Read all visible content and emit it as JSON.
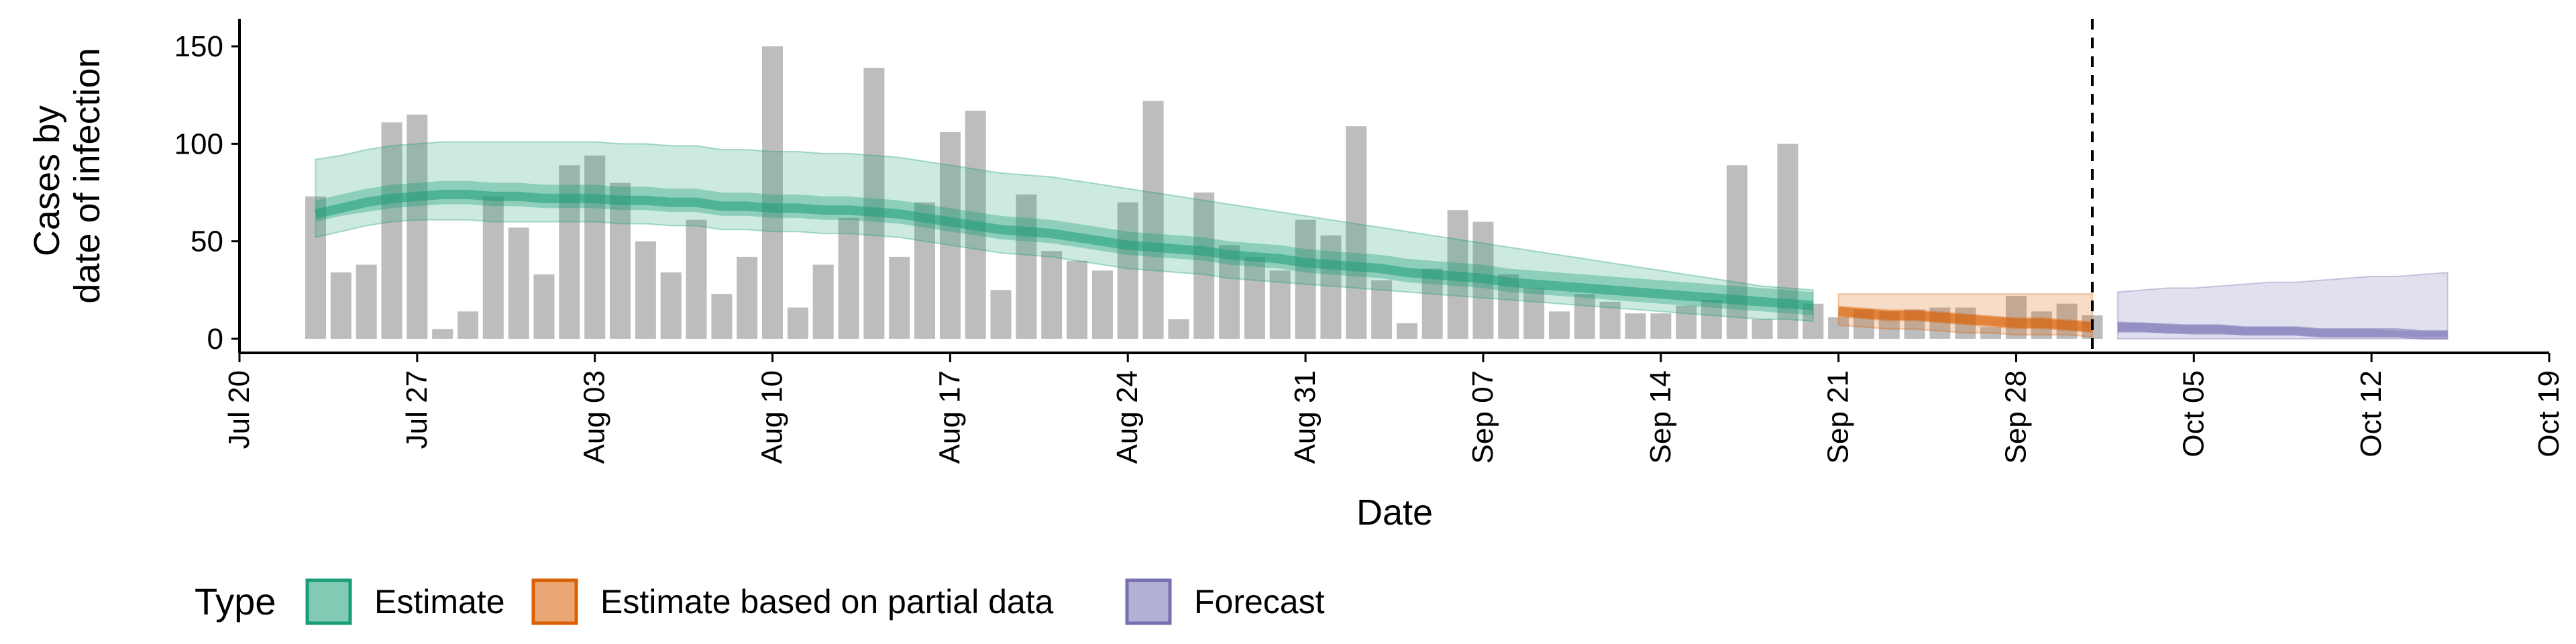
{
  "chart_data": {
    "type": "bar",
    "xlabel": "Date",
    "ylabel_lines": [
      "Cases by",
      "date of infection"
    ],
    "ylim": [
      0,
      160
    ],
    "xlim": [
      "2020-07-20",
      "2020-10-19"
    ],
    "yticks": [
      0,
      50,
      100,
      150
    ],
    "xticks": [
      {
        "date": "2020-07-20",
        "label": "Jul 20"
      },
      {
        "date": "2020-07-27",
        "label": "Jul 27"
      },
      {
        "date": "2020-08-03",
        "label": "Aug 03"
      },
      {
        "date": "2020-08-10",
        "label": "Aug 10"
      },
      {
        "date": "2020-08-17",
        "label": "Aug 17"
      },
      {
        "date": "2020-08-24",
        "label": "Aug 24"
      },
      {
        "date": "2020-08-31",
        "label": "Aug 31"
      },
      {
        "date": "2020-09-07",
        "label": "Sep 07"
      },
      {
        "date": "2020-09-14",
        "label": "Sep 14"
      },
      {
        "date": "2020-09-21",
        "label": "Sep 21"
      },
      {
        "date": "2020-09-28",
        "label": "Sep 28"
      },
      {
        "date": "2020-10-05",
        "label": "Oct 05"
      },
      {
        "date": "2020-10-12",
        "label": "Oct 12"
      },
      {
        "date": "2020-10-19",
        "label": "Oct 19"
      }
    ],
    "forecast_line_date": "2020-10-01",
    "bars": {
      "start_date": "2020-07-23",
      "values": [
        73,
        34,
        38,
        111,
        115,
        5,
        14,
        73,
        57,
        33,
        89,
        94,
        80,
        50,
        34,
        61,
        23,
        42,
        150,
        16,
        38,
        62,
        139,
        42,
        70,
        106,
        117,
        25,
        74,
        45,
        40,
        35,
        70,
        122,
        10,
        75,
        48,
        42,
        35,
        61,
        53,
        109,
        30,
        8,
        36,
        66,
        60,
        33,
        26,
        14,
        23,
        19,
        13,
        13,
        17,
        20,
        89,
        10,
        100,
        18,
        11,
        15,
        14,
        15,
        16,
        16,
        6,
        22,
        14,
        18,
        12
      ]
    },
    "series": [
      {
        "name": "Estimate",
        "color": "#1b9e77",
        "start_date": "2020-07-23",
        "median": [
          64,
          67,
          70,
          72,
          73,
          74,
          74,
          73,
          73,
          72,
          72,
          72,
          71,
          71,
          70,
          70,
          68,
          68,
          67,
          67,
          66,
          66,
          65,
          64,
          62,
          60,
          58,
          56,
          55,
          54,
          52,
          50,
          48,
          47,
          46,
          45,
          43,
          42,
          41,
          39,
          38,
          37,
          36,
          34,
          33,
          32,
          31,
          29,
          28,
          27,
          26,
          25,
          24,
          23,
          22,
          21,
          20,
          19,
          18,
          17
        ],
        "inner_low": [
          60,
          63,
          65,
          67,
          68,
          69,
          69,
          68,
          68,
          67,
          67,
          67,
          66,
          66,
          65,
          65,
          63,
          63,
          62,
          62,
          61,
          61,
          60,
          59,
          57,
          55,
          53,
          51,
          50,
          49,
          47,
          45,
          43,
          42,
          41,
          40,
          38,
          37,
          36,
          34,
          33,
          32,
          31,
          29,
          28,
          27,
          26,
          24,
          23,
          22,
          21,
          20,
          19,
          18,
          17,
          16,
          15,
          14,
          13,
          12
        ],
        "inner_high": [
          71,
          74,
          77,
          79,
          80,
          81,
          81,
          80,
          80,
          79,
          79,
          79,
          78,
          78,
          77,
          77,
          75,
          75,
          74,
          74,
          73,
          73,
          72,
          71,
          69,
          67,
          65,
          63,
          62,
          61,
          59,
          57,
          55,
          54,
          53,
          52,
          50,
          49,
          48,
          46,
          45,
          44,
          43,
          41,
          40,
          39,
          38,
          36,
          35,
          34,
          33,
          32,
          31,
          30,
          29,
          28,
          27,
          26,
          25,
          24
        ],
        "outer_low": [
          52,
          55,
          58,
          60,
          61,
          61,
          61,
          60,
          60,
          60,
          60,
          60,
          59,
          59,
          58,
          58,
          56,
          56,
          55,
          55,
          54,
          54,
          53,
          52,
          50,
          48,
          46,
          44,
          43,
          42,
          40,
          38,
          36,
          35,
          34,
          33,
          31,
          30,
          29,
          28,
          27,
          26,
          25,
          24,
          23,
          22,
          21,
          20,
          19,
          18,
          17,
          16,
          15,
          14,
          13,
          12,
          11,
          10,
          10,
          9
        ],
        "outer_high": [
          92,
          94,
          97,
          99,
          100,
          101,
          101,
          101,
          101,
          101,
          101,
          101,
          100,
          100,
          99,
          99,
          97,
          97,
          96,
          96,
          95,
          95,
          94,
          93,
          91,
          89,
          87,
          85,
          84,
          83,
          81,
          79,
          77,
          75,
          73,
          71,
          69,
          67,
          65,
          63,
          61,
          59,
          57,
          55,
          53,
          51,
          49,
          47,
          45,
          43,
          41,
          39,
          37,
          35,
          33,
          31,
          29,
          27,
          26,
          25
        ]
      },
      {
        "name": "Estimate based on partial data",
        "color": "#d95f02",
        "start_date": "2020-09-21",
        "median": [
          14,
          13,
          12,
          12,
          11,
          10,
          9,
          8,
          8,
          7,
          6
        ],
        "inner_low": [
          11,
          10,
          9,
          9,
          8,
          7,
          6,
          5,
          5,
          4,
          3
        ],
        "inner_high": [
          17,
          16,
          15,
          15,
          14,
          13,
          12,
          11,
          11,
          10,
          9
        ],
        "outer_low": [
          7,
          6,
          5,
          5,
          4,
          3,
          3,
          2,
          2,
          2,
          1
        ],
        "outer_high": [
          23,
          23,
          23,
          23,
          23,
          23,
          23,
          23,
          23,
          23,
          23
        ]
      },
      {
        "name": "Forecast",
        "color": "#7570b3",
        "start_date": "2020-10-02",
        "median": [
          6,
          6,
          5,
          5,
          5,
          4,
          4,
          4,
          3,
          3,
          3,
          3,
          2,
          2
        ],
        "inner_low": [
          3,
          3,
          3,
          2,
          2,
          2,
          2,
          2,
          1,
          1,
          1,
          1,
          1,
          1
        ],
        "inner_high": [
          9,
          8,
          8,
          7,
          7,
          6,
          6,
          6,
          5,
          5,
          5,
          4,
          4,
          4
        ],
        "outer_low": [
          0,
          0,
          0,
          0,
          0,
          0,
          0,
          0,
          0,
          0,
          0,
          0,
          0,
          0
        ],
        "outer_high": [
          24,
          25,
          26,
          26,
          27,
          28,
          29,
          29,
          30,
          31,
          32,
          32,
          33,
          34
        ]
      }
    ],
    "legend": {
      "title": "Type",
      "placement": "bottom-left",
      "items": [
        "Estimate",
        "Estimate based on partial data",
        "Forecast"
      ]
    }
  }
}
